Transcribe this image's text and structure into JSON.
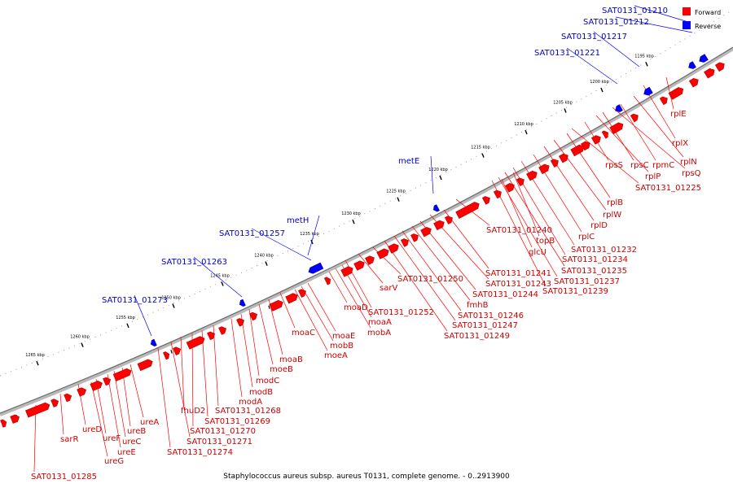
{
  "legend": {
    "forward": "Forward",
    "reverse": "Reverse"
  },
  "caption": "Staphylococcus aureus subsp. aureus T0131, complete genome. - 0..2913900",
  "colors": {
    "forward": "#ff0000",
    "reverse": "#0000ff",
    "forward_label": "#cc0000",
    "reverse_label": "#0000cc",
    "forward_leader": "#ff0000",
    "reverse_leader": "#0000ff"
  },
  "ticks": [
    "1195 kbp",
    "1200 kbp",
    "1205 kbp",
    "1210 kbp",
    "1215 kbp",
    "1220 kbp",
    "1225 kbp",
    "1230 kbp",
    "1235 kbp",
    "1240 kbp",
    "1245 kbp",
    "1250 kbp",
    "1255 kbp",
    "1260 kbp",
    "1265 kbp"
  ],
  "reverse_labels": [
    "SAT0131_01210",
    "SAT0131_01212",
    "SAT0131_01217",
    "SAT0131_01221",
    "metE",
    "metH",
    "SAT0131_01257",
    "SAT0131_01263",
    "SAT0131_01273"
  ],
  "forward_labels": [
    "rplE",
    "rplX",
    "rplN",
    "rpmC",
    "rpsQ",
    "rpsC",
    "rplP",
    "rpsS",
    "SAT0131_01225",
    "rplB",
    "rplW",
    "rplD",
    "rplC",
    "SAT0131_01232",
    "SAT0131_01234",
    "SAT0131_01235",
    "SAT0131_01237",
    "SAT0131_01239",
    "SAT0131_01240",
    "topB",
    "glcU",
    "SAT0131_01241",
    "SAT0131_01243",
    "SAT0131_01244",
    "fmhB",
    "SAT0131_01246",
    "SAT0131_01247",
    "SAT0131_01249",
    "SAT0131_01250",
    "sarV",
    "SAT0131_01252",
    "moaD",
    "moaA",
    "mobA",
    "moaE",
    "mobB",
    "moeA",
    "moaC",
    "moaB",
    "moeB",
    "modC",
    "modB",
    "modA",
    "SAT0131_01268",
    "SAT0131_01269",
    "SAT0131_01270",
    "fhuD2",
    "SAT0131_01271",
    "SAT0131_01274",
    "ureA",
    "ureB",
    "ureC",
    "ureE",
    "ureF",
    "ureG",
    "ureD",
    "sarR",
    "SAT0131_01285"
  ]
}
